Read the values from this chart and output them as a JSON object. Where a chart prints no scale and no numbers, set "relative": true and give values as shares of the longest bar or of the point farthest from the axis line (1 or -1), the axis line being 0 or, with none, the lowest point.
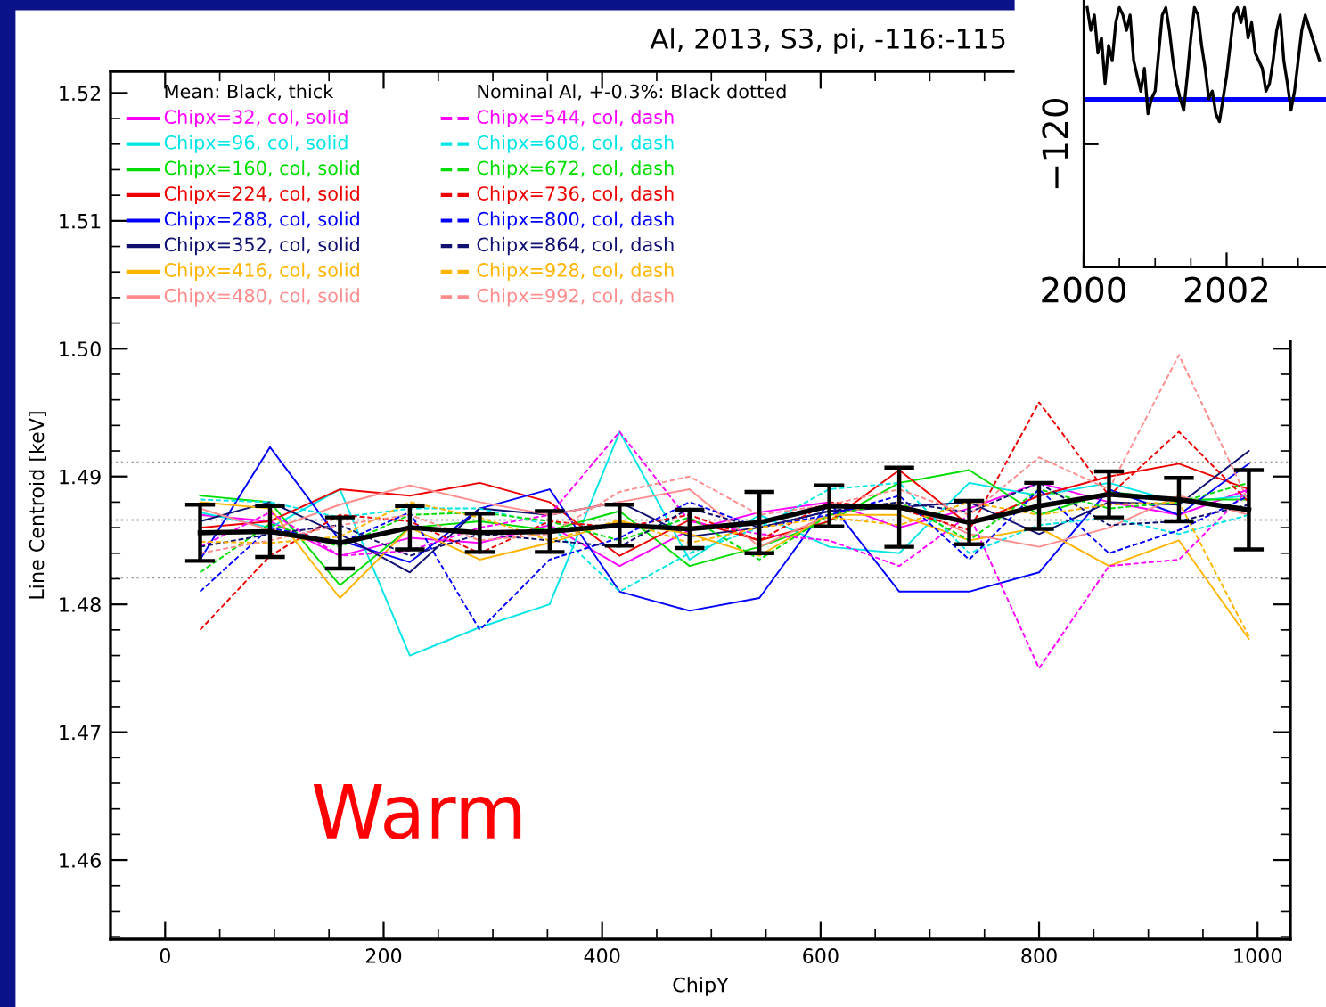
{
  "chart_data": [
    {
      "type": "line",
      "title": "Al, 2013, S3, pi, -116:-115",
      "xlabel": "ChipY",
      "ylabel": "Line Centroid [keV]",
      "x": [
        32,
        96,
        160,
        224,
        288,
        352,
        416,
        480,
        544,
        608,
        672,
        736,
        800,
        864,
        928,
        992
      ],
      "xlim": [
        -50,
        1030
      ],
      "ylim": [
        1.4538,
        1.5217
      ],
      "xticks": [
        0,
        200,
        400,
        600,
        800,
        1000
      ],
      "yticks": [
        {
          "value": 1.46,
          "label": "1.46"
        },
        {
          "value": 1.47,
          "label": "1.47"
        },
        {
          "value": 1.48,
          "label": "1.48"
        },
        {
          "value": 1.49,
          "label": "1.49"
        },
        {
          "value": 1.5,
          "label": "1.50"
        },
        {
          "value": 1.51,
          "label": "1.51"
        },
        {
          "value": 1.52,
          "label": "1.52"
        }
      ],
      "grid": false,
      "marker": "none",
      "legend": "top left",
      "annotations": [
        "Mean: Black, thick",
        "Nominal Al, +-0.3%: Black dotted",
        "Warm"
      ],
      "ref_lines": [
        {
          "axis": "y",
          "value": 1.4821,
          "color": "#999999",
          "line_style": "dotted"
        },
        {
          "axis": "y",
          "value": 1.4866,
          "color": "#999999",
          "line_style": "dotted"
        },
        {
          "axis": "y",
          "value": 1.4911,
          "color": "#999999",
          "line_style": "dotted"
        }
      ],
      "series": [
        {
          "name": "Chipx=32, col, solid",
          "color": "#ff00ff",
          "line_style": "solid",
          "values": [
            1.487,
            1.4865,
            1.4838,
            1.4852,
            1.4848,
            1.4862,
            1.483,
            1.4858,
            1.4872,
            1.488,
            1.486,
            1.4875,
            1.4895,
            1.488,
            1.487,
            1.489
          ]
        },
        {
          "name": "Chipx=96, col, solid",
          "color": "#00e5e5",
          "line_style": "solid",
          "values": [
            1.4872,
            1.486,
            1.489,
            1.476,
            1.4782,
            1.48,
            1.4935,
            1.4835,
            1.487,
            1.4845,
            1.484,
            1.4895,
            1.4885,
            1.4895,
            1.488,
            1.4885
          ]
        },
        {
          "name": "Chipx=160, col, solid",
          "color": "#00dd00",
          "line_style": "solid",
          "values": [
            1.4885,
            1.488,
            1.4815,
            1.486,
            1.4865,
            1.4858,
            1.4873,
            1.483,
            1.4845,
            1.4865,
            1.4895,
            1.4905,
            1.487,
            1.4888,
            1.4882,
            1.4882
          ]
        },
        {
          "name": "Chipx=224, col, solid",
          "color": "#ee0000",
          "line_style": "solid",
          "values": [
            1.486,
            1.4865,
            1.489,
            1.4885,
            1.4895,
            1.488,
            1.4838,
            1.4866,
            1.485,
            1.4865,
            1.4905,
            1.4862,
            1.4885,
            1.49,
            1.491,
            1.489
          ]
        },
        {
          "name": "Chipx=288, col, solid",
          "color": "#0000ff",
          "line_style": "solid",
          "values": [
            1.4835,
            1.4923,
            1.485,
            1.4833,
            1.4875,
            1.489,
            1.481,
            1.4795,
            1.4805,
            1.488,
            1.481,
            1.481,
            1.4825,
            1.489,
            1.487,
            1.491
          ]
        },
        {
          "name": "Chipx=352, col, solid",
          "color": "#101070",
          "line_style": "solid",
          "values": [
            1.4865,
            1.488,
            1.4855,
            1.4825,
            1.4875,
            1.487,
            1.488,
            1.4853,
            1.486,
            1.4873,
            1.4876,
            1.488,
            1.4855,
            1.488,
            1.4878,
            1.492
          ]
        },
        {
          "name": "Chipx=416, col, solid",
          "color": "#ffb400",
          "line_style": "solid",
          "values": [
            1.488,
            1.4875,
            1.4805,
            1.486,
            1.4835,
            1.4848,
            1.4865,
            1.4855,
            1.4838,
            1.487,
            1.487,
            1.485,
            1.486,
            1.483,
            1.485,
            1.4773
          ]
        },
        {
          "name": "Chipx=480, col, solid",
          "color": "#ff8c8c",
          "line_style": "solid",
          "values": [
            1.4875,
            1.4858,
            1.4878,
            1.4893,
            1.488,
            1.487,
            1.488,
            1.489,
            1.4845,
            1.487,
            1.488,
            1.4855,
            1.4845,
            1.486,
            1.4885,
            1.487
          ]
        },
        {
          "name": "Chipx=544, col, dash",
          "color": "#ff00ff",
          "line_style": "dashed",
          "values": [
            1.4845,
            1.4872,
            1.4838,
            1.4842,
            1.486,
            1.487,
            1.4935,
            1.4865,
            1.4855,
            1.485,
            1.483,
            1.487,
            1.475,
            1.483,
            1.4835,
            1.489
          ]
        },
        {
          "name": "Chipx=608, col, dash",
          "color": "#00e5e5",
          "line_style": "dashed",
          "values": [
            1.4882,
            1.488,
            1.4868,
            1.4875,
            1.4875,
            1.4862,
            1.481,
            1.484,
            1.486,
            1.489,
            1.4895,
            1.484,
            1.4862,
            1.4868,
            1.4855,
            1.487
          ]
        },
        {
          "name": "Chipx=672, col, dash",
          "color": "#00dd00",
          "line_style": "dashed",
          "values": [
            1.4825,
            1.4863,
            1.4845,
            1.487,
            1.4872,
            1.4865,
            1.485,
            1.4868,
            1.4835,
            1.487,
            1.488,
            1.485,
            1.489,
            1.4875,
            1.488,
            1.4895
          ]
        },
        {
          "name": "Chipx=736, col, dash",
          "color": "#ee0000",
          "line_style": "dashed",
          "values": [
            1.478,
            1.4838,
            1.487,
            1.4865,
            1.484,
            1.4865,
            1.486,
            1.487,
            1.485,
            1.488,
            1.4875,
            1.4858,
            1.4958,
            1.4885,
            1.4935,
            1.488
          ]
        },
        {
          "name": "Chipx=800, col, dash",
          "color": "#0000ff",
          "line_style": "dashed",
          "values": [
            1.481,
            1.486,
            1.4848,
            1.4872,
            1.478,
            1.4835,
            1.4852,
            1.488,
            1.486,
            1.487,
            1.4885,
            1.4835,
            1.489,
            1.484,
            1.4858,
            1.4885
          ]
        },
        {
          "name": "Chipx=864, col, dash",
          "color": "#101070",
          "line_style": "dashed",
          "values": [
            1.4845,
            1.4855,
            1.4862,
            1.4838,
            1.4855,
            1.485,
            1.4845,
            1.4875,
            1.486,
            1.4873,
            1.488,
            1.4872,
            1.4895,
            1.4862,
            1.4865,
            1.4878
          ]
        },
        {
          "name": "Chipx=928, col, dash",
          "color": "#ffb400",
          "line_style": "dashed",
          "values": [
            1.4849,
            1.4848,
            1.4853,
            1.488,
            1.4868,
            1.485,
            1.4866,
            1.4848,
            1.486,
            1.4868,
            1.4862,
            1.488,
            1.487,
            1.4878,
            1.488,
            1.4775
          ]
        },
        {
          "name": "Chipx=992, col, dash",
          "color": "#ff8c8c",
          "line_style": "dashed",
          "values": [
            1.484,
            1.485,
            1.4862,
            1.487,
            1.485,
            1.4855,
            1.4888,
            1.49,
            1.487,
            1.4878,
            1.489,
            1.487,
            1.4915,
            1.489,
            1.4995,
            1.488
          ]
        },
        {
          "color": "#000000",
          "line_style": "solid",
          "values": [
            1.4856,
            1.4857,
            1.4848,
            1.486,
            1.4856,
            1.4857,
            1.4862,
            1.4859,
            1.4864,
            1.4877,
            1.4876,
            1.4864,
            1.4877,
            1.4886,
            1.4882,
            1.4874
          ],
          "errors": [
            0.0022,
            0.002,
            0.002,
            0.0017,
            0.0015,
            0.0016,
            0.0016,
            0.0015,
            0.0024,
            0.0016,
            0.0031,
            0.0017,
            0.0018,
            0.0018,
            0.0017,
            0.0031
          ]
        }
      ]
    },
    {
      "type": "line",
      "relative": true,
      "xlim": [
        2000,
        2003.39
      ],
      "annotations": [
        "−120"
      ],
      "xticks": [
        2000,
        2002
      ],
      "grid": false,
      "marker": "none",
      "ref_lines": [
        {
          "axis": "y",
          "value": 0.646,
          "color": "#0000ff",
          "line_style": "solid"
        }
      ],
      "series": [
        {
          "color": "#000000",
          "line_style": "solid",
          "x": [
            2000.05,
            2000.1,
            2000.15,
            2000.2,
            2000.25,
            2000.3,
            2000.35,
            2000.4,
            2000.45,
            2000.5,
            2000.55,
            2000.6,
            2000.65,
            2000.7,
            2000.75,
            2000.8,
            2000.85,
            2000.9,
            2000.95,
            2001.0,
            2001.05,
            2001.1,
            2001.15,
            2001.2,
            2001.25,
            2001.3,
            2001.35,
            2001.4,
            2001.45,
            2001.5,
            2001.55,
            2001.6,
            2001.65,
            2001.7,
            2001.75,
            2001.8,
            2001.85,
            2001.9,
            2001.95,
            2002.0,
            2002.05,
            2002.1,
            2002.15,
            2002.2,
            2002.25,
            2002.3,
            2002.35,
            2002.4,
            2002.45,
            2002.5,
            2002.55,
            2002.6,
            2002.65,
            2002.7,
            2002.75,
            2002.8,
            2002.85,
            2002.9,
            2002.95,
            2003.0,
            2003.05,
            2003.1,
            2003.2,
            2003.3
          ],
          "values": [
            1.0,
            0.912,
            0.971,
            0.825,
            0.883,
            0.708,
            0.854,
            0.795,
            0.942,
            1.0,
            0.971,
            0.912,
            0.971,
            0.795,
            0.737,
            0.678,
            0.766,
            0.591,
            0.649,
            0.678,
            0.825,
            0.971,
            1.0,
            0.912,
            0.795,
            0.708,
            0.649,
            0.605,
            0.737,
            0.883,
            1.0,
            0.971,
            0.854,
            0.766,
            0.649,
            0.678,
            0.591,
            0.561,
            0.649,
            0.737,
            0.854,
            0.971,
            1.0,
            0.942,
            1.0,
            0.883,
            0.942,
            0.825,
            0.795,
            0.766,
            0.678,
            0.708,
            0.795,
            0.912,
            0.971,
            0.795,
            0.708,
            0.605,
            0.678,
            0.795,
            0.912,
            0.971,
            0.883,
            0.795
          ]
        }
      ]
    }
  ]
}
